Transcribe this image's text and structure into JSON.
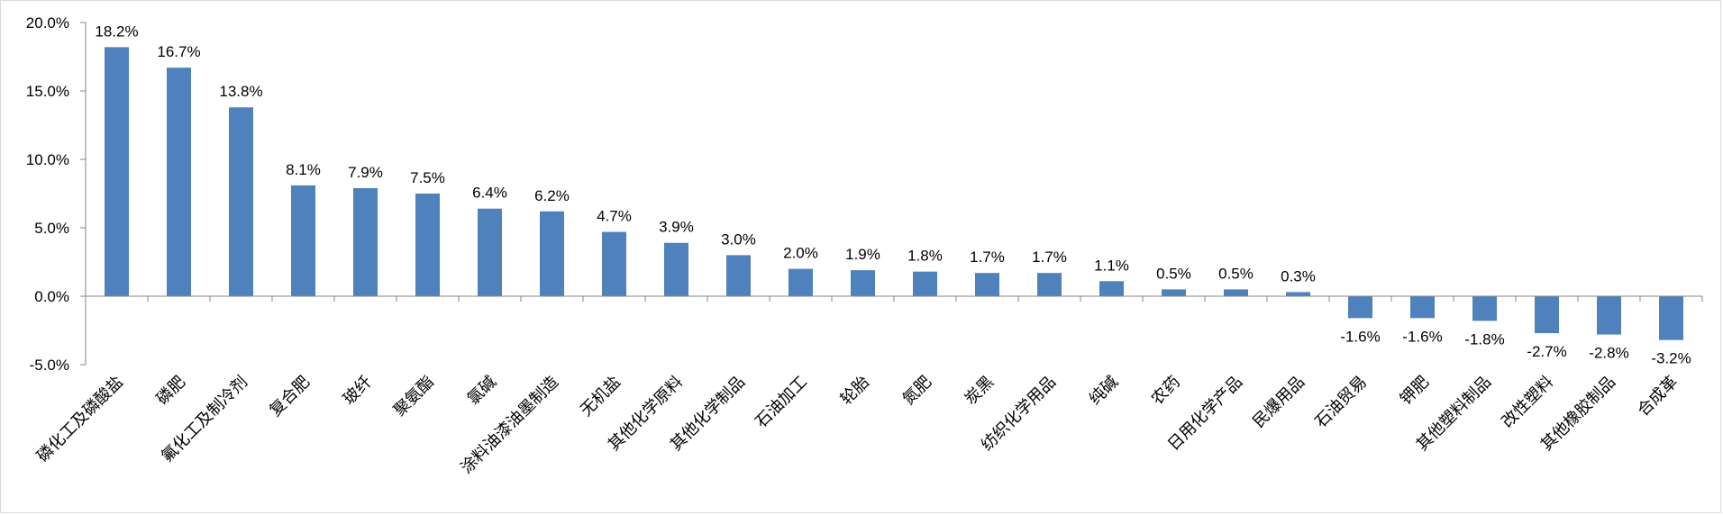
{
  "chart_data": {
    "type": "bar",
    "title": "",
    "xlabel": "",
    "ylabel": "",
    "ylim": [
      -5.0,
      20.0
    ],
    "yticks": [
      "20.0%",
      "15.0%",
      "10.0%",
      "5.0%",
      "0.0%",
      "-5.0%"
    ],
    "ytick_values": [
      20.0,
      15.0,
      10.0,
      5.0,
      0.0,
      -5.0
    ],
    "grid": false,
    "bar_color": "#4f81bd",
    "categories": [
      "磷化工及磷酸盐",
      "磷肥",
      "氟化工及制冷剂",
      "复合肥",
      "玻纤",
      "聚氨酯",
      "氯碱",
      "涂料油漆油墨制造",
      "无机盐",
      "其他化学原料",
      "其他化学制品",
      "石油加工",
      "轮胎",
      "氮肥",
      "炭黑",
      "纺织化学用品",
      "纯碱",
      "农药",
      "日用化学产品",
      "民爆用品",
      "石油贸易",
      "钾肥",
      "其他塑料制品",
      "改性塑料",
      "其他橡胶制品",
      "合成革"
    ],
    "values": [
      18.2,
      16.7,
      13.8,
      8.1,
      7.9,
      7.5,
      6.4,
      6.2,
      4.7,
      3.9,
      3.0,
      2.0,
      1.9,
      1.8,
      1.7,
      1.7,
      1.1,
      0.5,
      0.5,
      0.3,
      -1.6,
      -1.6,
      -1.8,
      -2.7,
      -2.8,
      -3.2
    ],
    "value_labels": [
      "18.2%",
      "16.7%",
      "13.8%",
      "8.1%",
      "7.9%",
      "7.5%",
      "6.4%",
      "6.2%",
      "4.7%",
      "3.9%",
      "3.0%",
      "2.0%",
      "1.9%",
      "1.8%",
      "1.7%",
      "1.7%",
      "1.1%",
      "0.5%",
      "0.5%",
      "0.3%",
      "-1.6%",
      "-1.6%",
      "-1.8%",
      "-2.7%",
      "-2.8%",
      "-3.2%"
    ]
  }
}
